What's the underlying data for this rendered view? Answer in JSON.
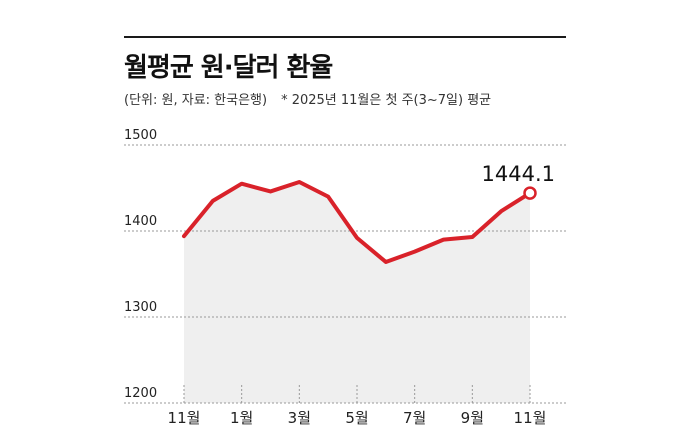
{
  "title": "월평균 원·달러 환율",
  "subtitle": "(단위: 원, 자료: 한국은행)",
  "note": "* 2025년 11월은 첫 주(3~7일) 평균",
  "chart_data": {
    "type": "area",
    "title": "월평균 원·달러 환율",
    "ylabel": "",
    "xlabel": "",
    "ylim": [
      1200,
      1500
    ],
    "yticks": [
      1200,
      1300,
      1400,
      1500
    ],
    "grid": true,
    "x": [
      "2024-11",
      "2024-12",
      "2025-01",
      "2025-02",
      "2025-03",
      "2025-04",
      "2025-05",
      "2025-06",
      "2025-07",
      "2025-08",
      "2025-09",
      "2025-10",
      "2025-11"
    ],
    "xtick_labels": [
      "11월",
      "1월",
      "3월",
      "5월",
      "7월",
      "9월",
      "11월"
    ],
    "xtick_indices": [
      0,
      2,
      4,
      6,
      8,
      10,
      12
    ],
    "series": [
      {
        "values": [
          1394,
          1435,
          1455,
          1446,
          1457,
          1440,
          1392,
          1364,
          1376,
          1390,
          1393,
          1423,
          1444.1
        ]
      }
    ],
    "annotation": {
      "index": 12,
      "text": "1444.1"
    },
    "colors": {
      "line": "#d9222a",
      "fill": "#efefef",
      "grid": "#9a9a9a",
      "text": "#222222"
    }
  }
}
